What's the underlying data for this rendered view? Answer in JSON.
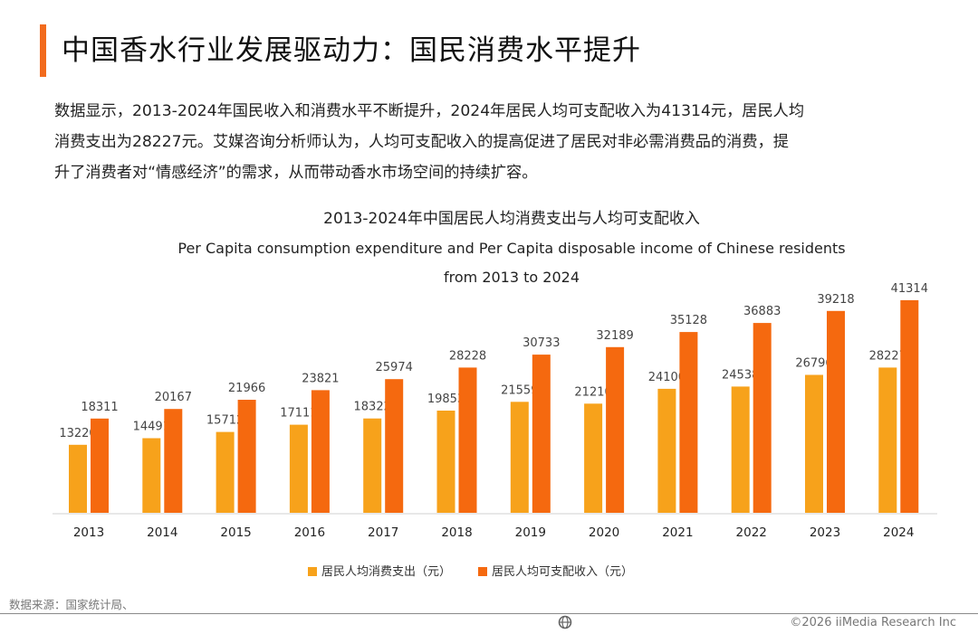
{
  "header": {
    "title": "中国香水行业发展驱动力：国民消费水平提升",
    "accent_color": "#f26b1d"
  },
  "body_text": [
    "数据显示，2013-2024年国民收入和消费水平不断提升，2024年居民人均可支配收入为41314元，居民人均",
    "消费支出为28227元。艾媒咨询分析师认为，人均可支配收入的提高促进了居民对非必需消费品的消费，提",
    "升了消费者对“情感经济”的需求，从而带动香水市场空间的持续扩容。"
  ],
  "chart_data": {
    "type": "bar",
    "title": "2013-2024年中国居民人均消费支出与人均可支配收入",
    "subtitle_line1": "Per Capita consumption expenditure and Per Capita disposable income of Chinese residents",
    "subtitle_line2": "from 2013 to 2024",
    "categories": [
      "2013",
      "2014",
      "2015",
      "2016",
      "2017",
      "2018",
      "2019",
      "2020",
      "2021",
      "2022",
      "2023",
      "2024"
    ],
    "series": [
      {
        "name": "居民人均消费支出（元）",
        "color": "#f7a21b",
        "values": [
          13220,
          14491,
          15712,
          17111,
          18322,
          19853,
          21559,
          21210,
          24100,
          24538,
          26796,
          28227
        ]
      },
      {
        "name": "居民人均可支配收入（元）",
        "color": "#f5690f",
        "values": [
          18311,
          20167,
          21966,
          23821,
          25974,
          28228,
          30733,
          32189,
          35128,
          36883,
          39218,
          41314
        ]
      }
    ],
    "ylim": [
      0,
      42000
    ],
    "grid": false,
    "legend_position": "bottom-center"
  },
  "source": "数据来源：国家统计局、",
  "footer": {
    "logo_icon": "globe-logo-icon",
    "copyright": "©2026  iiMedia Research Inc"
  }
}
